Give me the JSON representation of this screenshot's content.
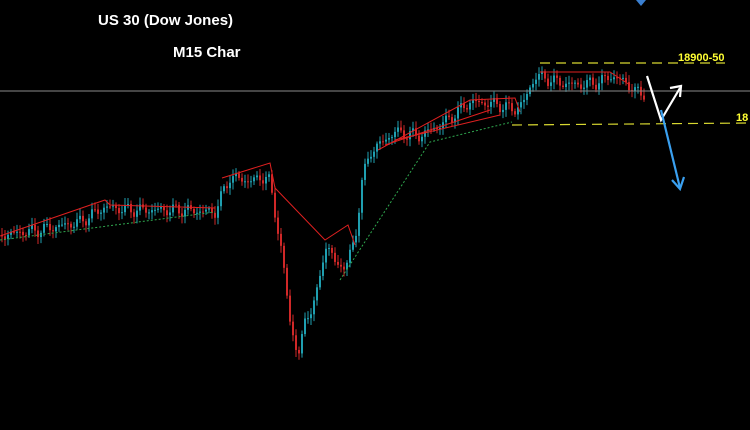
{
  "header": {
    "title": "US 30 (Dow Jones)",
    "subtitle": "M15 Char"
  },
  "levels": [
    {
      "label": "18900-50"
    },
    {
      "label": "18"
    }
  ]
}
